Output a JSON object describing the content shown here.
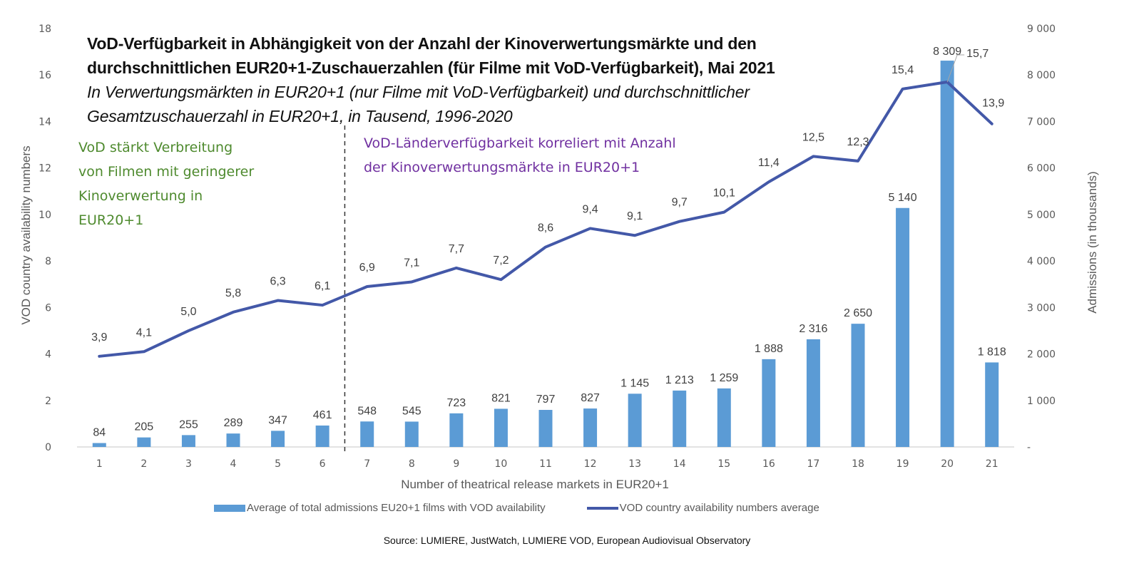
{
  "header": {
    "title_lines": [
      "VoD-Verfügbarkeit in Abhängigkeit von der Anzahl der Kinoverwertungsmärkte und den",
      "durchschnittlichen EUR20+1-Zuschauerzahlen (für Filme mit VoD-Verfügbarkeit), Mai 2021"
    ],
    "subtitle_lines": [
      "In Verwertungsmärkten in EUR20+1 (nur Filme mit VoD-Verfügbarkeit) und durchschnittlicher",
      "Gesamtzuschauerzahl in EUR20+1, in Tausend, 1996-2020"
    ]
  },
  "annotations": {
    "left_green": [
      "VoD stärkt Verbreitung",
      "von Filmen mit geringerer",
      "Kinoverwertung in",
      "EUR20+1"
    ],
    "right_purple": [
      "VoD-Länderverfügbarkeit korreliert mit Anzahl",
      "der Kinoverwertungsmärkte in EUR20+1"
    ],
    "divider_after_category": "6"
  },
  "legend": {
    "bar_label": "Average of total admissions EU20+1 films with VOD availability",
    "line_label": "VOD country availability numbers average"
  },
  "source": "Source: LUMIERE, JustWatch, LUMIERE VOD, European Audiovisual Observatory",
  "colors": {
    "bar": "#5b9bd5",
    "line": "#4358a8",
    "green_annotation": "#4e8a2e",
    "purple_annotation": "#7030a0",
    "axis_text": "#595959"
  },
  "chart_data": {
    "type": "bar+line",
    "title": "VoD-Verfügbarkeit in Abhängigkeit von der Anzahl der Kinoverwertungsmärkte und den durchschnittlichen EUR20+1-Zuschauerzahlen (für Filme mit VoD-Verfügbarkeit), Mai 2021",
    "xlabel": "Number of theatrical release markets in EUR20+1",
    "ylabel_left": "VOD country availability numbers",
    "ylabel_right": "Admissions (in thousands)",
    "categories": [
      "1",
      "2",
      "3",
      "4",
      "5",
      "6",
      "7",
      "8",
      "9",
      "10",
      "11",
      "12",
      "13",
      "14",
      "15",
      "16",
      "17",
      "18",
      "19",
      "20",
      "21"
    ],
    "ylim_left": [
      0,
      18
    ],
    "yticks_left": [
      "0",
      "2",
      "4",
      "6",
      "8",
      "10",
      "12",
      "14",
      "16",
      "18"
    ],
    "ylim_right": [
      0,
      9000
    ],
    "yticks_right": [
      "-",
      "1 000",
      "2 000",
      "3 000",
      "4 000",
      "5 000",
      "6 000",
      "7 000",
      "8 000",
      "9 000"
    ],
    "grid": false,
    "legend_position": "bottom",
    "series": [
      {
        "name": "Average of total admissions EU20+1 films with VOD availability",
        "type": "bar",
        "axis": "right",
        "values": [
          84,
          205,
          255,
          289,
          347,
          461,
          548,
          545,
          723,
          821,
          797,
          827,
          1145,
          1213,
          1259,
          1888,
          2316,
          2650,
          5140,
          8309,
          1818
        ],
        "labels": [
          "84",
          "205",
          "255",
          "289",
          "347",
          "461",
          "548",
          "545",
          "723",
          "821",
          "797",
          "827",
          "1 145",
          "1 213",
          "1 259",
          "1 888",
          "2 316",
          "2 650",
          "5 140",
          "8 309",
          "1 818"
        ]
      },
      {
        "name": "VOD country availability numbers average",
        "type": "line",
        "axis": "left",
        "values": [
          3.9,
          4.1,
          5.0,
          5.8,
          6.3,
          6.1,
          6.9,
          7.1,
          7.7,
          7.2,
          8.6,
          9.4,
          9.1,
          9.7,
          10.1,
          11.4,
          12.5,
          12.3,
          15.4,
          15.7,
          13.9
        ],
        "labels": [
          "3,9",
          "4,1",
          "5,0",
          "5,8",
          "6,3",
          "6,1",
          "6,9",
          "7,1",
          "7,7",
          "7,2",
          "8,6",
          "9,4",
          "9,1",
          "9,7",
          "10,1",
          "11,4",
          "12,5",
          "12,3",
          "15,4",
          "15,7",
          "13,9"
        ]
      }
    ]
  }
}
